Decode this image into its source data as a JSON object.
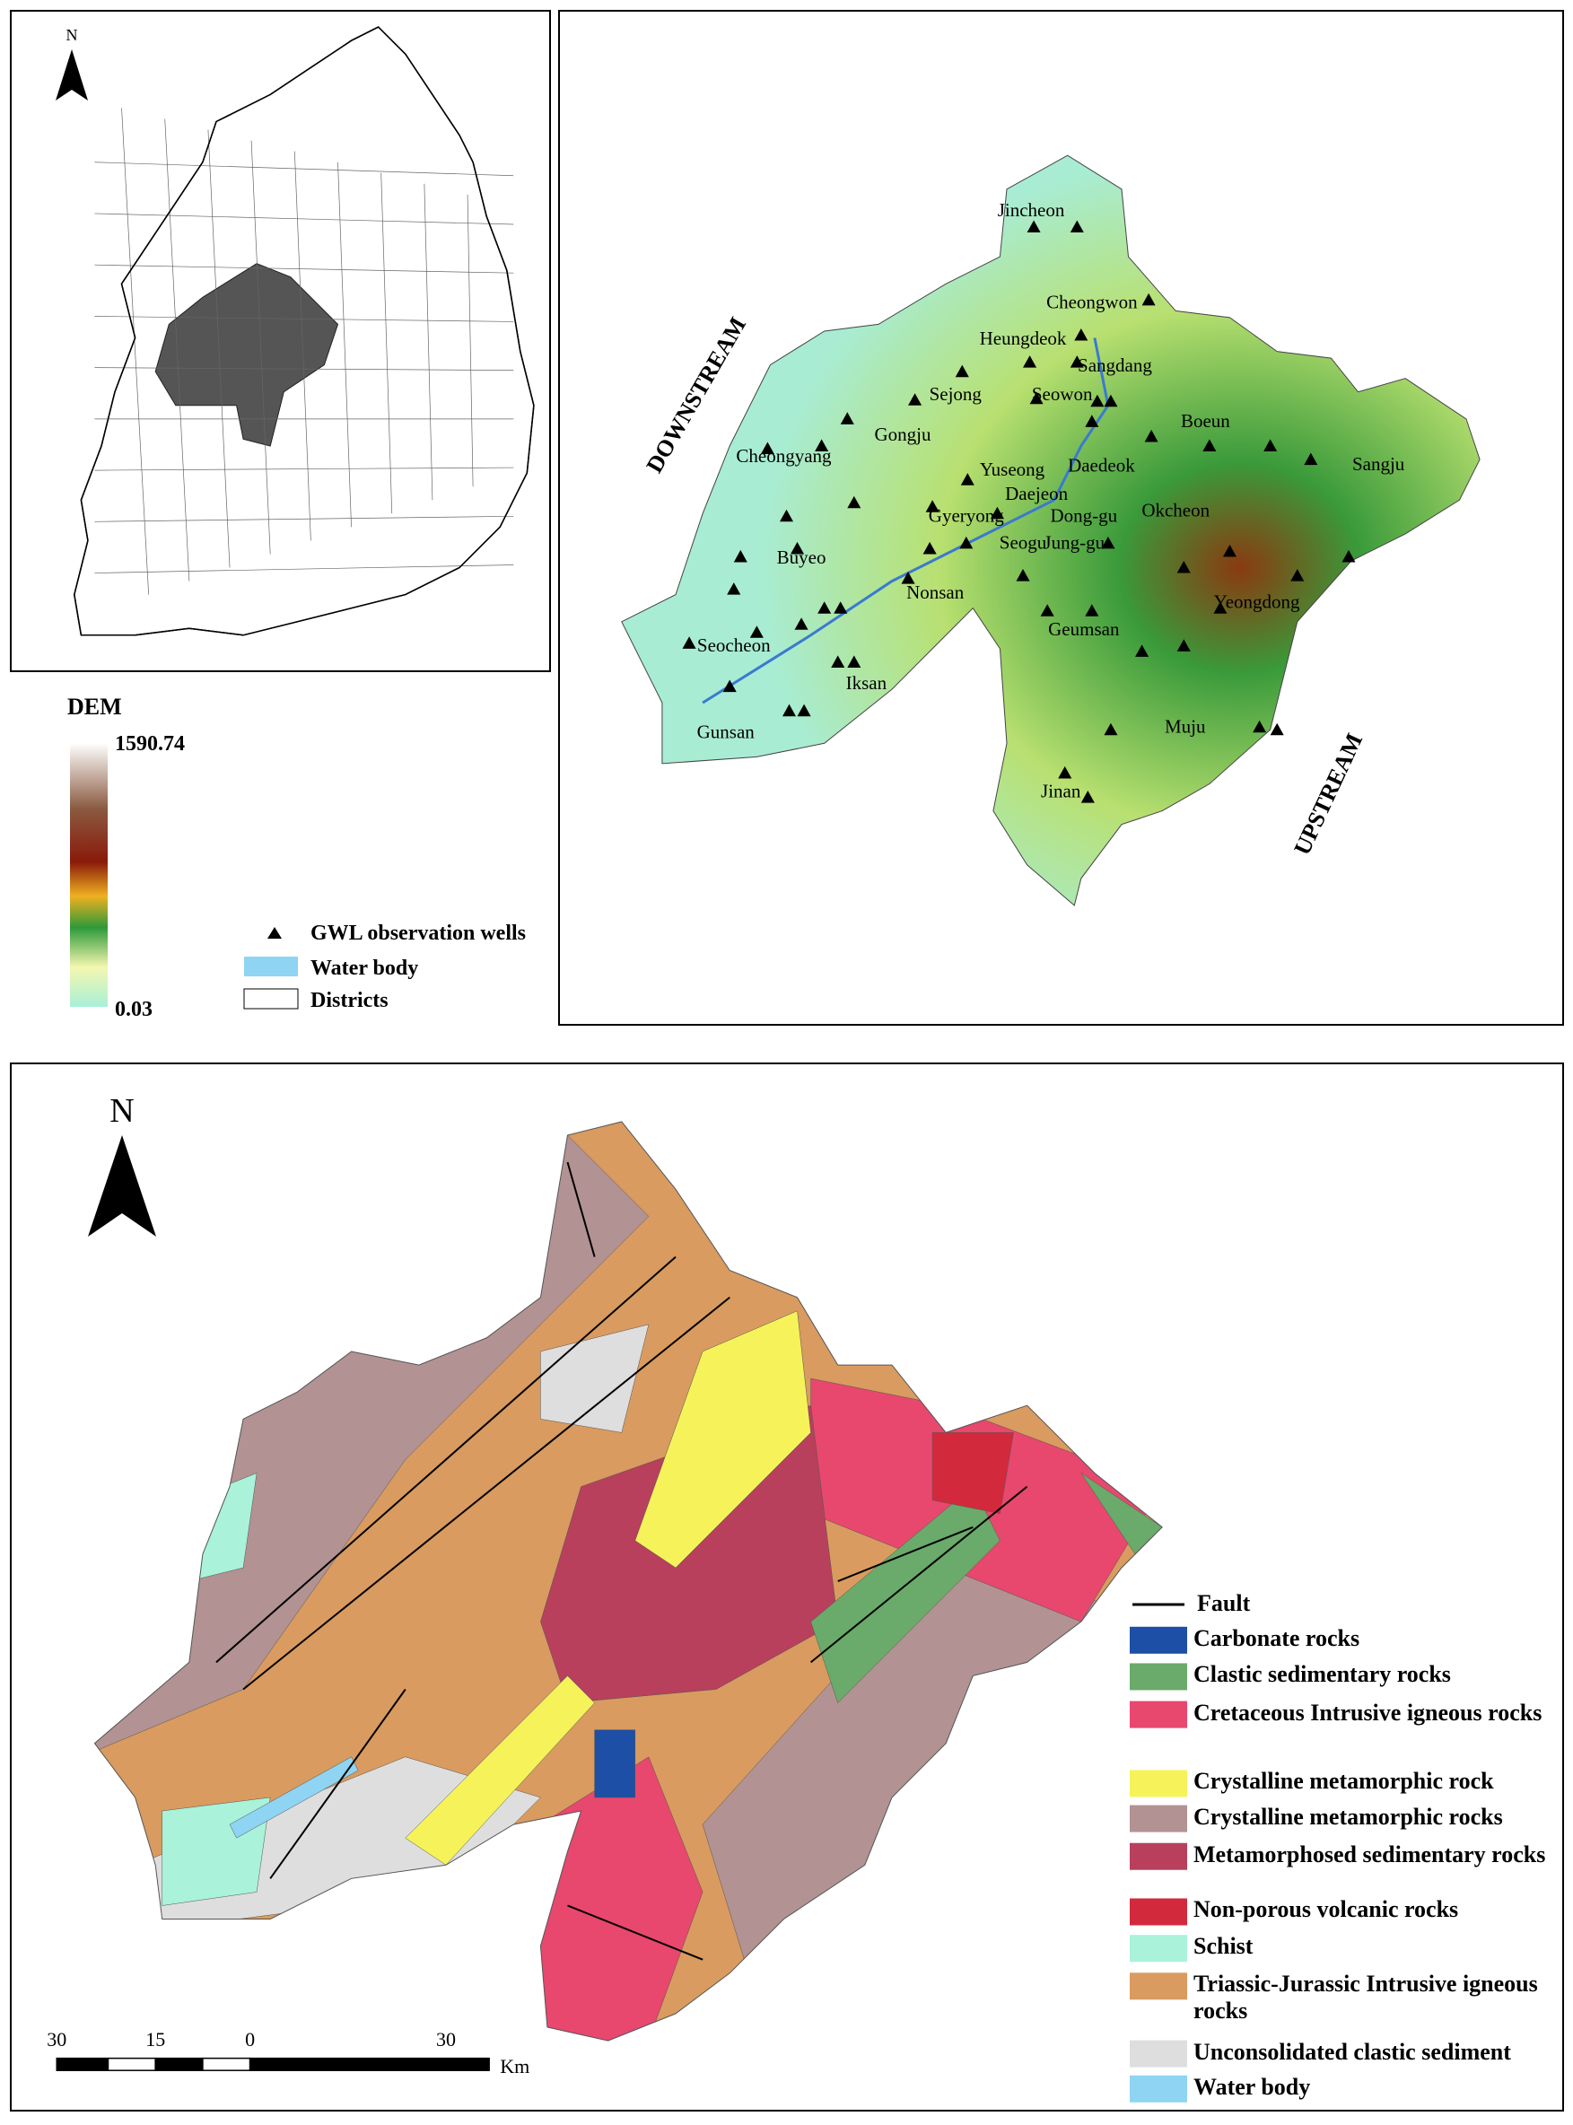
{
  "overview_map": {
    "north": "N"
  },
  "dem_map": {
    "downstream": "DOWNSTREAM",
    "upstream": "UPSTREAM",
    "places": [
      "Jincheon",
      "Cheongwon",
      "Heungdeok",
      "Sangdang",
      "Sejong",
      "Seowon",
      "Gongju",
      "Boeun",
      "Sangju",
      "Cheongyang",
      "Yuseong",
      "Daedeok",
      "Daejeon",
      "Dong-gu",
      "Okcheon",
      "Gyeryong",
      "Seogu",
      "Jung-gu",
      "Buyeo",
      "Nonsan",
      "Yeongdong",
      "Geumsan",
      "Seocheon",
      "Iksan",
      "Gunsan",
      "Muju",
      "Jinan"
    ]
  },
  "dem_legend": {
    "title": "DEM",
    "max": "1590.74",
    "min": "0.03",
    "items": [
      "GWL observation wells",
      "Water body",
      "Districts"
    ]
  },
  "geology_map": {
    "north": "N",
    "scale_labels": [
      "30",
      "15",
      "0",
      "30"
    ],
    "scale_unit": "Km",
    "fault": "Fault",
    "legend": [
      {
        "name": "Carbonate rocks",
        "color": "#1d4fa6"
      },
      {
        "name": "Clastic sedimentary rocks",
        "color": "#6aaa6a"
      },
      {
        "name": "Cretaceous Intrusive igneous rocks",
        "color": "#e8476e"
      },
      {
        "name": "Crystalline metamorphic rock",
        "color": "#f6f35a"
      },
      {
        "name": "Crystalline metamorphic rocks",
        "color": "#b29292"
      },
      {
        "name": "Metamorphosed sedimentary rocks",
        "color": "#b8405c"
      },
      {
        "name": "Non-porous volcanic rocks",
        "color": "#d22a3c"
      },
      {
        "name": "Schist",
        "color": "#aaf2da"
      },
      {
        "name": "Triassic-Jurassic Intrusive igneous rocks",
        "color": "#d99b5f"
      },
      {
        "name": "Unconsolidated clastic sediment",
        "color": "#dedede"
      },
      {
        "name": "Water body",
        "color": "#8fd4f2"
      }
    ]
  }
}
